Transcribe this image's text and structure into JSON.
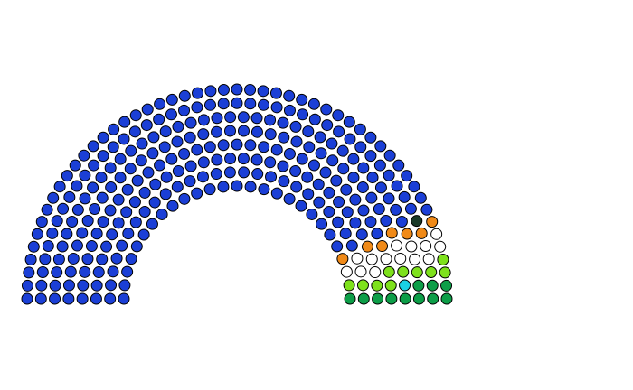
{
  "chart_data": {
    "type": "parliament",
    "title": "",
    "rows": 8,
    "total_seats": 310,
    "parties": [
      {
        "color": "#1b3fd6",
        "seats": 266
      },
      {
        "color": "#1a3a28",
        "seats": 1
      },
      {
        "color": "#f08a18",
        "seats": 7
      },
      {
        "color": "#ffffff",
        "seats": 14
      },
      {
        "color": "#7ee11c",
        "seats": 10
      },
      {
        "color": "#1ad2e6",
        "seats": 1
      },
      {
        "color": "#0d9e48",
        "seats": 11
      }
    ]
  }
}
